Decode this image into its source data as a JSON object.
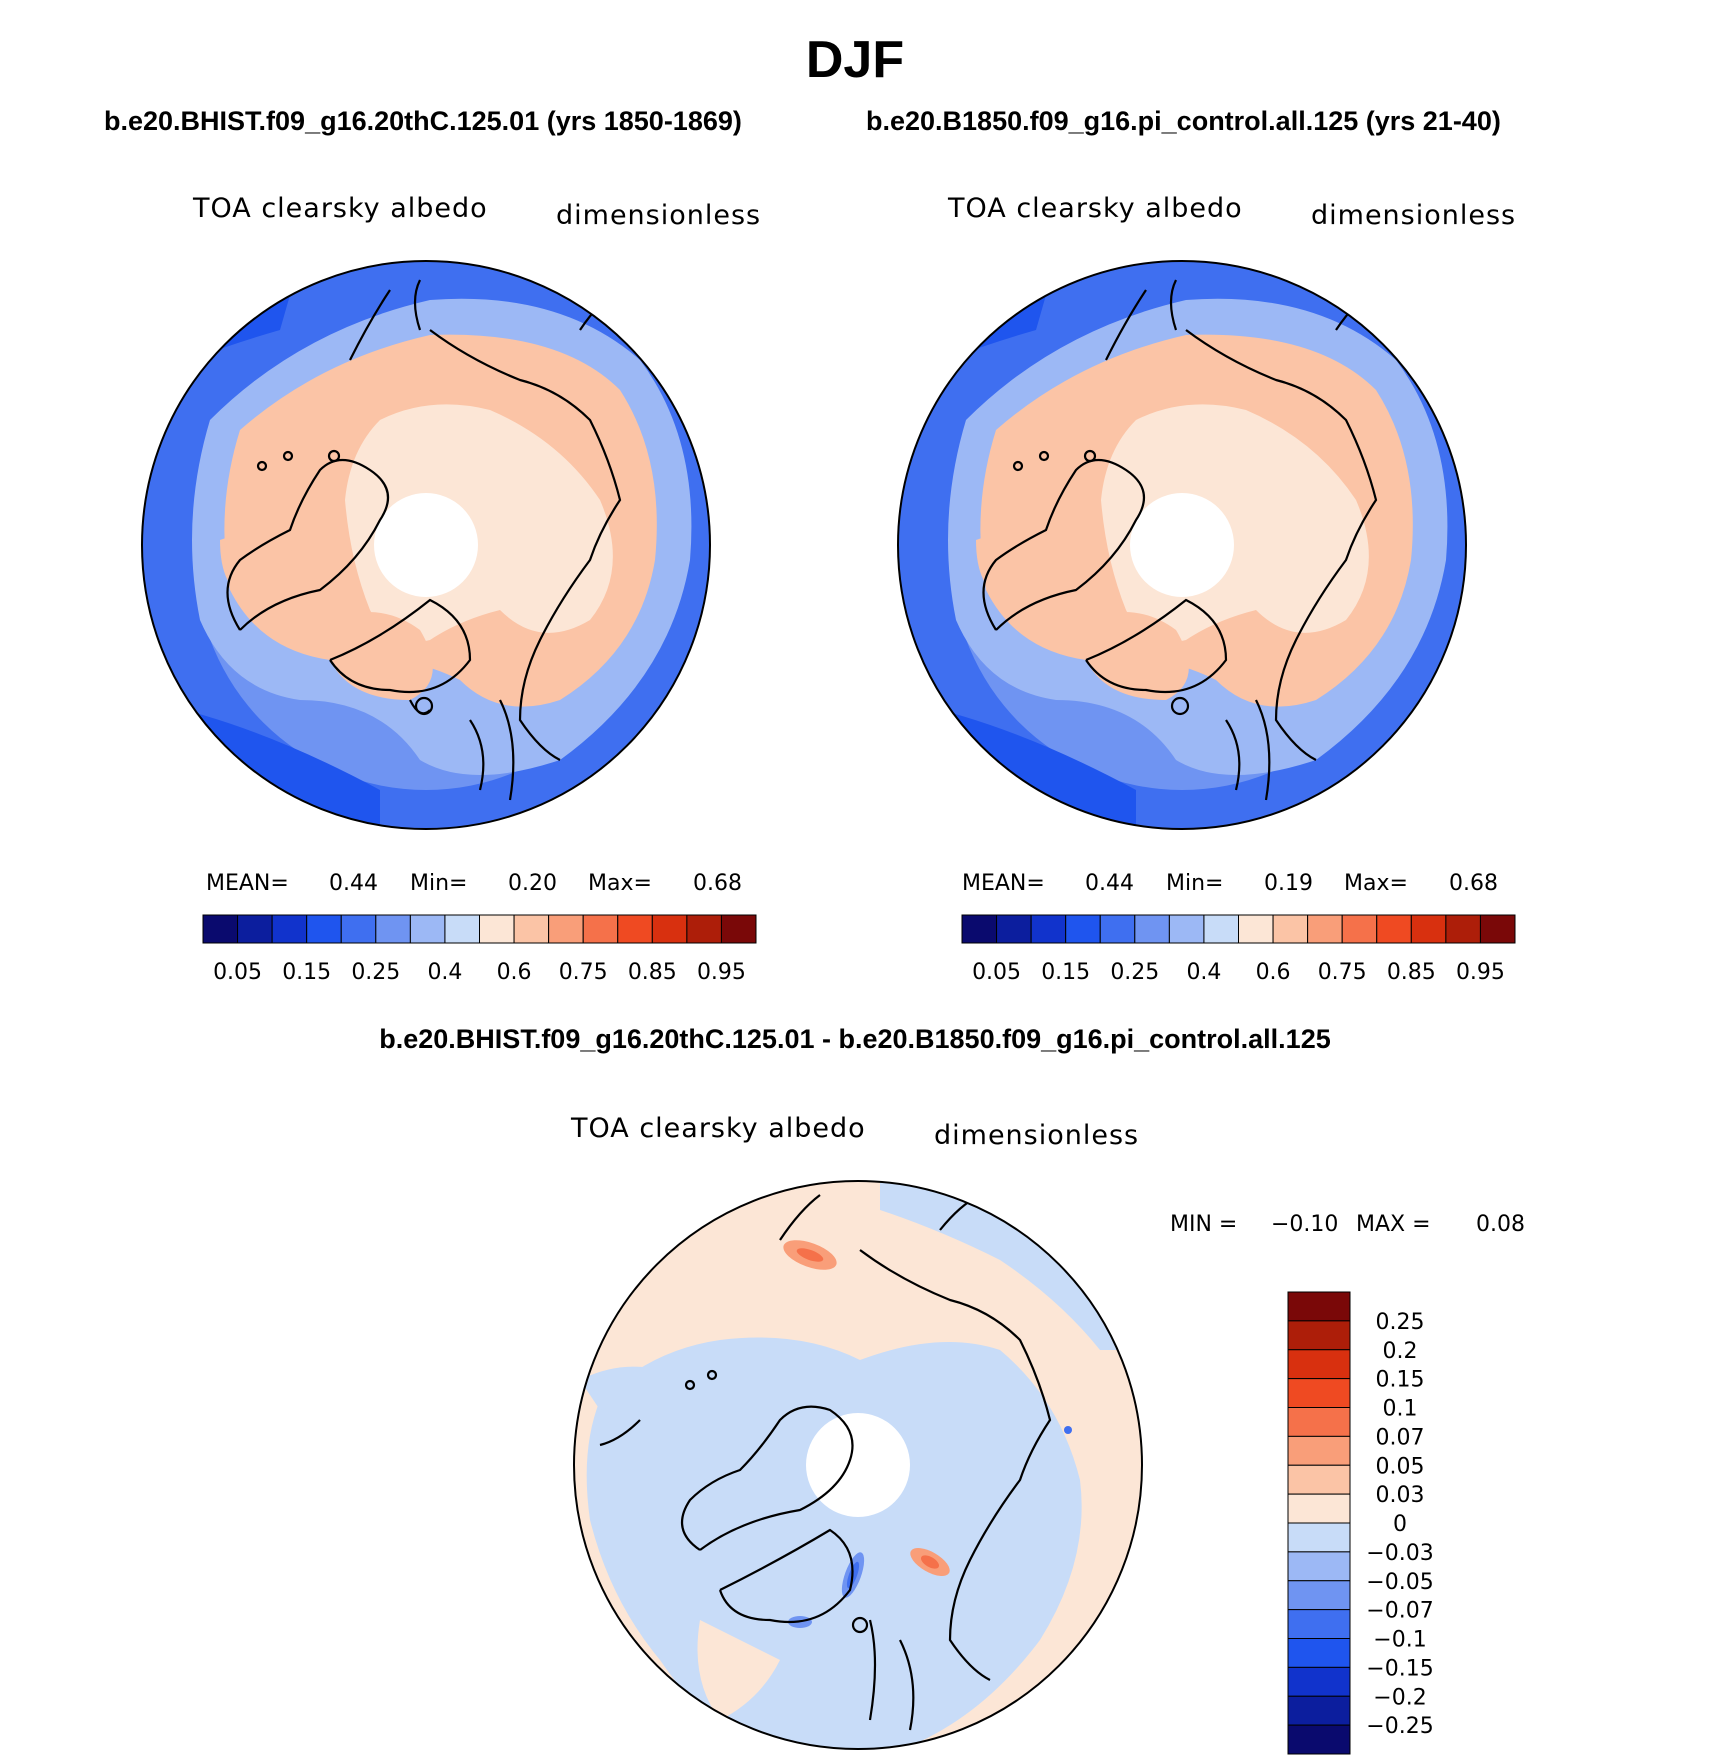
{
  "figure": {
    "title": "DJF",
    "subtitle_left": "b.e20.BHIST.f09_g16.20thC.125.01 (yrs 1850-1869)",
    "subtitle_right": "b.e20.B1850.f09_g16.pi_control.all.125 (yrs 21-40)",
    "diff_title": "b.e20.BHIST.f09_g16.20thC.125.01 - b.e20.B1850.f09_g16.pi_control.all.125"
  },
  "panels": [
    {
      "variable": "TOA clearsky albedo",
      "units": "dimensionless",
      "stats": {
        "mean_label": "MEAN=",
        "mean": "0.44",
        "min_label": "Min=",
        "min": "0.20",
        "max_label": "Max=",
        "max": "0.68"
      }
    },
    {
      "variable": "TOA clearsky albedo",
      "units": "dimensionless",
      "stats": {
        "mean_label": "MEAN=",
        "mean": "0.44",
        "min_label": "Min=",
        "min": "0.19",
        "max_label": "Max=",
        "max": "0.68"
      }
    },
    {
      "variable": "TOA clearsky albedo",
      "units": "dimensionless",
      "stats": {
        "min_label": "MIN =",
        "min": "−0.10",
        "max_label": "MAX =",
        "max": "0.08"
      }
    }
  ],
  "colorbar_abs": {
    "colors": [
      "#0a0a6e",
      "#0c1e9e",
      "#1133cc",
      "#1f55ee",
      "#3f6ff0",
      "#6f94f2",
      "#9cb8f5",
      "#c8dcf8",
      "#fce6d6",
      "#fbc4a6",
      "#f99e79",
      "#f5714a",
      "#ef4a22",
      "#d8300f",
      "#ad1e09",
      "#7a0808"
    ],
    "tick_labels": [
      "0.05",
      "0.15",
      "0.25",
      "0.4",
      "0.6",
      "0.75",
      "0.85",
      "0.95"
    ]
  },
  "colorbar_diff": {
    "colors": [
      "#0a0a6e",
      "#0c1e9e",
      "#1133cc",
      "#1f55ee",
      "#3f6ff0",
      "#6f94f2",
      "#9cb8f5",
      "#c8dcf8",
      "#fce6d6",
      "#fbc4a6",
      "#f99e79",
      "#f5714a",
      "#ef4a22",
      "#d8300f",
      "#ad1e09",
      "#7a0808"
    ],
    "tick_labels": [
      "0.25",
      "0.2",
      "0.15",
      "0.1",
      "0.07",
      "0.05",
      "0.03",
      "0",
      "−0.03",
      "−0.05",
      "−0.07",
      "−0.1",
      "−0.15",
      "−0.2",
      "−0.25"
    ]
  }
}
